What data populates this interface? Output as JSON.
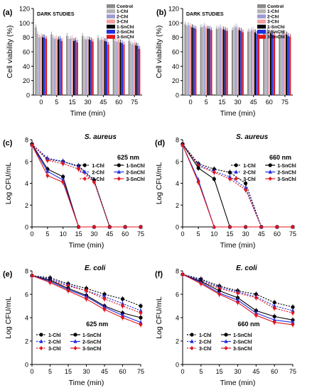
{
  "figure": {
    "chart_data": [
      {
        "panel": "(a)",
        "type": "bar",
        "annotation": "DARK STUDIES",
        "xlabel": "Time (min)",
        "ylabel": "Cell viability (%)",
        "ylim": [
          0,
          120
        ],
        "yticks": [
          0,
          20,
          40,
          60,
          80,
          100,
          120
        ],
        "categories": [
          "0",
          "5",
          "15",
          "30",
          "45",
          "60",
          "75"
        ],
        "legend_position": "top-right",
        "series": [
          {
            "name": "Control",
            "color": "#8c8c8c",
            "values": [
              94,
              84,
              82,
              82,
              79,
              79,
              75
            ]
          },
          {
            "name": "1-Chl",
            "color": "#b4b4b4",
            "values": [
              85,
              80,
              78,
              78,
              76,
              75,
              72
            ]
          },
          {
            "name": "2-Chl",
            "color": "#9c9cd4",
            "values": [
              80,
              78,
              78,
              77,
              77,
              74,
              70
            ]
          },
          {
            "name": "3-Chl",
            "color": "#f4a0a0",
            "values": [
              82,
              79,
              79,
              78,
              77,
              77,
              72
            ]
          },
          {
            "name": "1-SnChl",
            "color": "#000000",
            "values": [
              80,
              77,
              75,
              77,
              75,
              73,
              69
            ]
          },
          {
            "name": "2-SnChl",
            "color": "#1f2ee0",
            "values": [
              80,
              78,
              76,
              76,
              74,
              72,
              68
            ]
          },
          {
            "name": "3-SnChl",
            "color": "#e0161c",
            "values": [
              78,
              75,
              73,
              74,
              70,
              70,
              64
            ]
          }
        ]
      },
      {
        "panel": "(b)",
        "type": "bar",
        "annotation": "DARK STUDIES",
        "xlabel": "Time (min)",
        "ylabel": "Cell viability (%)",
        "ylim": [
          0,
          120
        ],
        "yticks": [
          0,
          20,
          40,
          60,
          80,
          100,
          120
        ],
        "categories": [
          "0",
          "5",
          "15",
          "30",
          "45",
          "60",
          "75"
        ],
        "legend_position": "top-right",
        "series": [
          {
            "name": "Control",
            "color": "#8c8c8c",
            "values": [
              98,
              94,
              92,
              90,
              88,
              86,
              84
            ]
          },
          {
            "name": "1-Chl",
            "color": "#b4b4b4",
            "values": [
              96,
              94,
              92,
              93,
              88,
              87,
              84
            ]
          },
          {
            "name": "2-Chl",
            "color": "#9c9cd4",
            "values": [
              97,
              96,
              94,
              95,
              90,
              90,
              87
            ]
          },
          {
            "name": "3-Chl",
            "color": "#f4a0a0",
            "values": [
              96,
              94,
              92,
              93,
              90,
              88,
              86
            ]
          },
          {
            "name": "1-SnChl",
            "color": "#000000",
            "values": [
              94,
              92,
              91,
              90,
              87,
              86,
              84
            ]
          },
          {
            "name": "2-SnChl",
            "color": "#1f2ee0",
            "values": [
              93,
              92,
              90,
              89,
              85,
              84,
              82
            ]
          },
          {
            "name": "3-SnChl",
            "color": "#e0161c",
            "values": [
              92,
              90,
              89,
              87,
              84,
              83,
              81
            ]
          }
        ]
      },
      {
        "panel": "(c)",
        "type": "line",
        "title": "S. aureus",
        "annotation": "625 nm",
        "xlabel": "Time (min)",
        "ylabel": "Log  CFU/mL",
        "xlim": [
          0,
          75
        ],
        "ylim": [
          0,
          8
        ],
        "xticks": [
          0,
          5,
          10,
          15,
          30,
          45,
          60,
          75
        ],
        "yticks": [
          0,
          2,
          4,
          6,
          8
        ],
        "legend_position": "top-right",
        "legend_columns": 2,
        "x": [
          0,
          5,
          10,
          15,
          30,
          45,
          60,
          75
        ],
        "series": [
          {
            "name": "1-Chl",
            "color": "#000000",
            "dashed": true,
            "marker": "circle",
            "values": [
              7.6,
              6.2,
              6.0,
              5.6,
              4.3,
              0,
              0,
              0
            ]
          },
          {
            "name": "2-Chl",
            "color": "#1f2ee0",
            "dashed": true,
            "marker": "triangle",
            "values": [
              7.6,
              6.3,
              6.0,
              5.5,
              4.2,
              0,
              0,
              0
            ]
          },
          {
            "name": "3-Chl",
            "color": "#e0161c",
            "dashed": true,
            "marker": "diamond",
            "values": [
              7.6,
              6.1,
              5.8,
              5.3,
              4.1,
              0,
              0,
              0
            ]
          },
          {
            "name": "1-SnChl",
            "color": "#000000",
            "dashed": false,
            "marker": "circle",
            "values": [
              7.6,
              5.3,
              4.6,
              0,
              0,
              0,
              0,
              0
            ]
          },
          {
            "name": "2-SnChl",
            "color": "#1f2ee0",
            "dashed": false,
            "marker": "triangle",
            "values": [
              7.5,
              5.1,
              4.3,
              0,
              0,
              0,
              0,
              0
            ]
          },
          {
            "name": "3-SnChl",
            "color": "#e0161c",
            "dashed": false,
            "marker": "diamond",
            "values": [
              7.5,
              4.7,
              4.1,
              0,
              0,
              0,
              0,
              0
            ]
          }
        ]
      },
      {
        "panel": "(d)",
        "type": "line",
        "title": "S. aureus",
        "annotation": "660 nm",
        "xlabel": "Time (min)",
        "ylabel": "Log  CFU/mL",
        "xlim": [
          0,
          75
        ],
        "ylim": [
          0,
          8
        ],
        "xticks": [
          0,
          5,
          10,
          15,
          30,
          45,
          60,
          75
        ],
        "yticks": [
          0,
          2,
          4,
          6,
          8
        ],
        "legend_position": "top-right",
        "legend_columns": 2,
        "x": [
          0,
          5,
          10,
          15,
          30,
          45,
          60,
          75
        ],
        "series": [
          {
            "name": "1-Chl",
            "color": "#000000",
            "dashed": true,
            "marker": "circle",
            "values": [
              7.6,
              5.8,
              5.3,
              5.0,
              4.0,
              0,
              0,
              0
            ]
          },
          {
            "name": "2-Chl",
            "color": "#1f2ee0",
            "dashed": true,
            "marker": "triangle",
            "values": [
              7.6,
              5.7,
              5.1,
              4.6,
              3.6,
              0,
              0,
              0
            ]
          },
          {
            "name": "3-Chl",
            "color": "#e0161c",
            "dashed": true,
            "marker": "diamond",
            "values": [
              7.6,
              5.6,
              5.0,
              4.4,
              3.4,
              0,
              0,
              0
            ]
          },
          {
            "name": "1-SnChl",
            "color": "#000000",
            "dashed": false,
            "marker": "circle",
            "values": [
              7.6,
              5.4,
              4.4,
              0,
              0,
              0,
              0,
              0
            ]
          },
          {
            "name": "2-SnChl",
            "color": "#1f2ee0",
            "dashed": false,
            "marker": "triangle",
            "values": [
              7.5,
              4.3,
              0,
              0,
              0,
              0,
              0,
              0
            ]
          },
          {
            "name": "3-SnChl",
            "color": "#e0161c",
            "dashed": false,
            "marker": "diamond",
            "values": [
              7.5,
              4.1,
              0,
              0,
              0,
              0,
              0,
              0
            ]
          }
        ]
      },
      {
        "panel": "(e)",
        "type": "line",
        "title": "E. coli",
        "annotation": "625 nm",
        "xlabel": "Time (min)",
        "ylabel": "Log  CFU/mL",
        "xlim": [
          0,
          75
        ],
        "ylim": [
          0,
          8
        ],
        "xticks": [
          0,
          5,
          15,
          30,
          45,
          60,
          75
        ],
        "yticks": [
          0,
          2,
          4,
          6,
          8
        ],
        "legend_position": "bottom-left",
        "legend_columns": 2,
        "x": [
          0,
          5,
          15,
          30,
          45,
          60,
          75
        ],
        "series": [
          {
            "name": "1-Chl",
            "color": "#000000",
            "dashed": true,
            "marker": "circle",
            "values": [
              7.6,
              7.4,
              6.9,
              6.5,
              6.0,
              5.6,
              5.0
            ]
          },
          {
            "name": "2-Chl",
            "color": "#1f2ee0",
            "dashed": true,
            "marker": "triangle",
            "values": [
              7.6,
              7.3,
              6.8,
              6.3,
              5.8,
              5.2,
              4.6
            ]
          },
          {
            "name": "3-Chl",
            "color": "#e0161c",
            "dashed": true,
            "marker": "diamond",
            "values": [
              7.6,
              7.2,
              6.7,
              6.3,
              5.6,
              5.0,
              4.4
            ]
          },
          {
            "name": "1-SnChl",
            "color": "#000000",
            "dashed": false,
            "marker": "circle",
            "values": [
              7.6,
              7.2,
              6.5,
              5.9,
              5.0,
              4.4,
              4.0
            ]
          },
          {
            "name": "2-SnChl",
            "color": "#1f2ee0",
            "dashed": false,
            "marker": "triangle",
            "values": [
              7.6,
              7.1,
              6.4,
              5.8,
              4.9,
              4.2,
              3.6
            ]
          },
          {
            "name": "3-SnChl",
            "color": "#e0161c",
            "dashed": false,
            "marker": "diamond",
            "values": [
              7.6,
              7.0,
              6.3,
              5.6,
              4.7,
              4.0,
              3.4
            ]
          }
        ]
      },
      {
        "panel": "(f)",
        "type": "line",
        "title": "E. coli",
        "annotation": "660 nm",
        "xlabel": "Time (min)",
        "ylabel": "Log  CFU/mL",
        "xlim": [
          0,
          75
        ],
        "ylim": [
          0,
          8
        ],
        "xticks": [
          0,
          5,
          15,
          30,
          45,
          60,
          75
        ],
        "yticks": [
          0,
          2,
          4,
          6,
          8
        ],
        "legend_position": "bottom-left",
        "legend_columns": 2,
        "x": [
          0,
          5,
          15,
          30,
          45,
          60,
          75
        ],
        "series": [
          {
            "name": "1-Chl",
            "color": "#000000",
            "dashed": true,
            "marker": "circle",
            "values": [
              7.7,
              7.3,
              6.7,
              6.3,
              6.0,
              5.3,
              4.9
            ]
          },
          {
            "name": "2-Chl",
            "color": "#1f2ee0",
            "dashed": true,
            "marker": "triangle",
            "values": [
              7.7,
              7.2,
              6.6,
              6.2,
              5.8,
              5.0,
              4.6
            ]
          },
          {
            "name": "3-Chl",
            "color": "#e0161c",
            "dashed": true,
            "marker": "diamond",
            "values": [
              7.7,
              7.1,
              6.5,
              6.1,
              5.7,
              4.8,
              4.4
            ]
          },
          {
            "name": "1-SnChl",
            "color": "#000000",
            "dashed": false,
            "marker": "circle",
            "values": [
              7.7,
              7.1,
              6.3,
              5.7,
              4.6,
              4.1,
              3.8
            ]
          },
          {
            "name": "2-SnChl",
            "color": "#1f2ee0",
            "dashed": false,
            "marker": "triangle",
            "values": [
              7.7,
              7.0,
              6.1,
              5.5,
              4.4,
              3.8,
              3.6
            ]
          },
          {
            "name": "3-SnChl",
            "color": "#e0161c",
            "dashed": false,
            "marker": "diamond",
            "values": [
              7.7,
              6.9,
              6.0,
              5.3,
              4.2,
              3.6,
              3.4
            ]
          }
        ]
      }
    ]
  }
}
